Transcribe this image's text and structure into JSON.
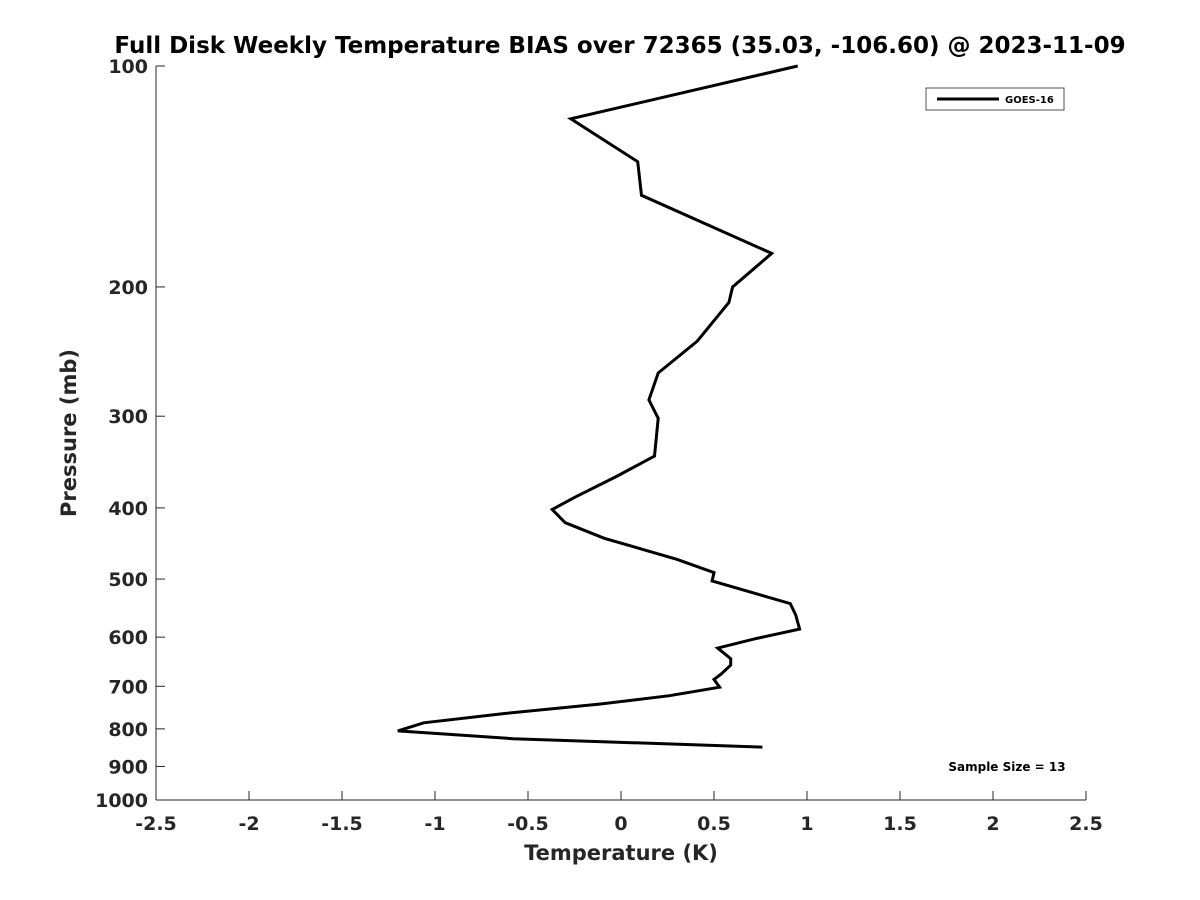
{
  "chart_data": {
    "type": "line",
    "title": "Full Disk Weekly Temperature BIAS over 72365 (35.03, -106.60) @ 2023-11-09",
    "xlabel": "Temperature (K)",
    "ylabel": "Pressure (mb)",
    "xlim": [
      -2.5,
      2.5
    ],
    "ylim": [
      100,
      1000
    ],
    "y_scale": "log",
    "y_reversed": true,
    "grid": false,
    "legend_position": "top-right",
    "x_ticks": [
      -2.5,
      -2,
      -1.5,
      -1,
      -0.5,
      0,
      0.5,
      1,
      1.5,
      2,
      2.5
    ],
    "x_tick_labels": [
      "-2.5",
      "-2",
      "-1.5",
      "-1",
      "-0.5",
      "0",
      "0.5",
      "1",
      "1.5",
      "2",
      "2.5"
    ],
    "y_ticks": [
      100,
      200,
      300,
      400,
      500,
      600,
      700,
      800,
      900,
      1000
    ],
    "y_tick_labels": [
      "100",
      "200",
      "300",
      "400",
      "500",
      "600",
      "700",
      "800",
      "900",
      "1000"
    ],
    "series": [
      {
        "name": "GOES-16",
        "color": "#000000",
        "points": [
          [
            0.95,
            100
          ],
          [
            -0.27,
            118
          ],
          [
            0.09,
            135
          ],
          [
            0.11,
            150
          ],
          [
            0.81,
            180
          ],
          [
            0.6,
            200
          ],
          [
            0.58,
            210
          ],
          [
            0.41,
            237
          ],
          [
            0.2,
            262
          ],
          [
            0.15,
            285
          ],
          [
            0.2,
            302
          ],
          [
            0.18,
            340
          ],
          [
            -0.03,
            363
          ],
          [
            -0.25,
            387
          ],
          [
            -0.37,
            402
          ],
          [
            -0.3,
            419
          ],
          [
            -0.09,
            440
          ],
          [
            0.3,
            470
          ],
          [
            0.5,
            490
          ],
          [
            0.49,
            503
          ],
          [
            0.91,
            540
          ],
          [
            0.94,
            560
          ],
          [
            0.96,
            585
          ],
          [
            0.72,
            603
          ],
          [
            0.52,
            621
          ],
          [
            0.59,
            642
          ],
          [
            0.59,
            655
          ],
          [
            0.54,
            673
          ],
          [
            0.5,
            685
          ],
          [
            0.53,
            702
          ],
          [
            0.26,
            721
          ],
          [
            -0.11,
            740
          ],
          [
            -0.62,
            762
          ],
          [
            -1.06,
            785
          ],
          [
            -1.2,
            805
          ],
          [
            -0.58,
            825
          ],
          [
            0.76,
            847
          ]
        ]
      }
    ],
    "annotations": [
      {
        "text": "Sample Size = 13"
      }
    ]
  }
}
